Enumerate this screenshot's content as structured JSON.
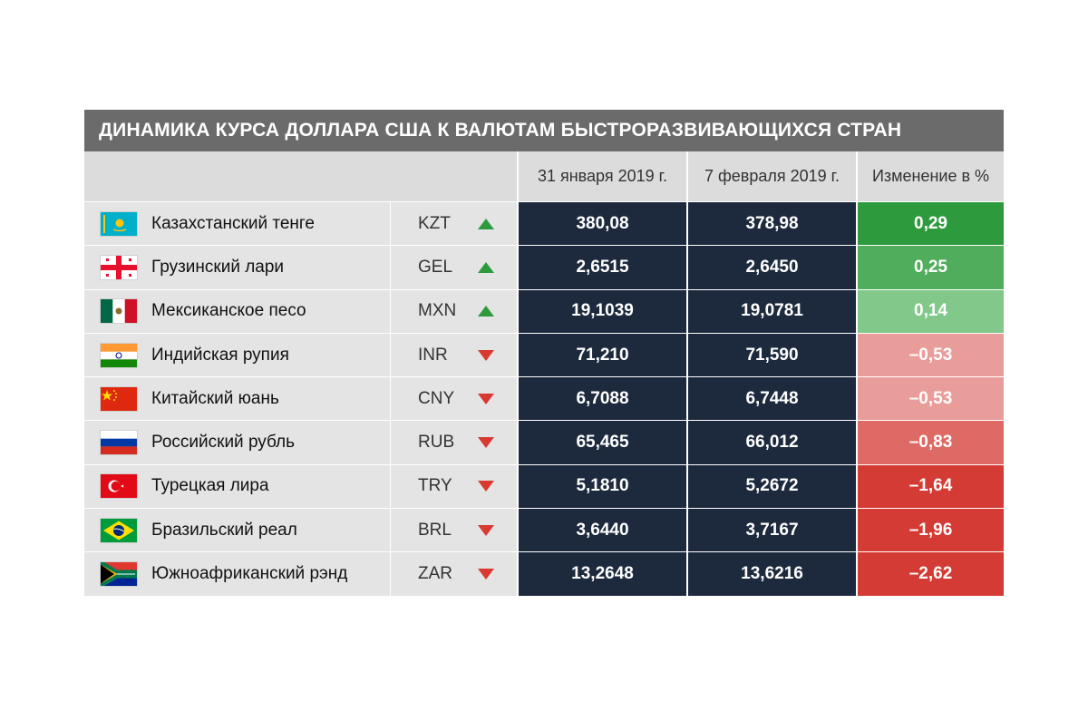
{
  "title": "ДИНАМИКА КУРСА ДОЛЛАРА США К ВАЛЮТАМ БЫСТРОРАЗВИВАЮЩИХСЯ СТРАН",
  "headers": {
    "date1": "31 января 2019 г.",
    "date2": "7 февраля 2019 г.",
    "change": "Изменение в %"
  },
  "rows": [
    {
      "flag": "kazakhstan-flag-icon",
      "name": "Казахстанский тенге",
      "code": "KZT",
      "direction": "up",
      "date1": "380,08",
      "date2": "378,98",
      "change": "0,29",
      "change_color": "#2e9a3e"
    },
    {
      "flag": "georgia-flag-icon",
      "name": "Грузинский лари",
      "code": "GEL",
      "direction": "up",
      "date1": "2,6515",
      "date2": "2,6450",
      "change": "0,25",
      "change_color": "#4fad5b"
    },
    {
      "flag": "mexico-flag-icon",
      "name": "Мексиканское песо",
      "code": "MXN",
      "direction": "up",
      "date1": "19,1039",
      "date2": "19,0781",
      "change": "0,14",
      "change_color": "#83c88b"
    },
    {
      "flag": "india-flag-icon",
      "name": "Индийская рупия",
      "code": "INR",
      "direction": "down",
      "date1": "71,210",
      "date2": "71,590",
      "change": "–0,53",
      "change_color": "#e99d9a"
    },
    {
      "flag": "china-flag-icon",
      "name": "Китайский юань",
      "code": "CNY",
      "direction": "down",
      "date1": "6,7088",
      "date2": "6,7448",
      "change": "–0,53",
      "change_color": "#e99d9a"
    },
    {
      "flag": "russia-flag-icon",
      "name": "Российский рубль",
      "code": "RUB",
      "direction": "down",
      "date1": "65,465",
      "date2": "66,012",
      "change": "–0,83",
      "change_color": "#de6a66"
    },
    {
      "flag": "turkey-flag-icon",
      "name": "Турецкая лира",
      "code": "TRY",
      "direction": "down",
      "date1": "5,1810",
      "date2": "5,2672",
      "change": "–1,64",
      "change_color": "#d33b34"
    },
    {
      "flag": "brazil-flag-icon",
      "name": "Бразильский реал",
      "code": "BRL",
      "direction": "down",
      "date1": "3,6440",
      "date2": "3,7167",
      "change": "–1,96",
      "change_color": "#d33b34"
    },
    {
      "flag": "south-africa-flag-icon",
      "name": "Южноафриканский рэнд",
      "code": "ZAR",
      "direction": "down",
      "date1": "13,2648",
      "date2": "13,6216",
      "change": "–2,62",
      "change_color": "#d33b34"
    }
  ],
  "colors": {
    "title_bg": "#6b6b6b",
    "value_bg": "#1d2a3e",
    "up_arrow": "#2e9a3e",
    "down_arrow": "#d83a32"
  }
}
